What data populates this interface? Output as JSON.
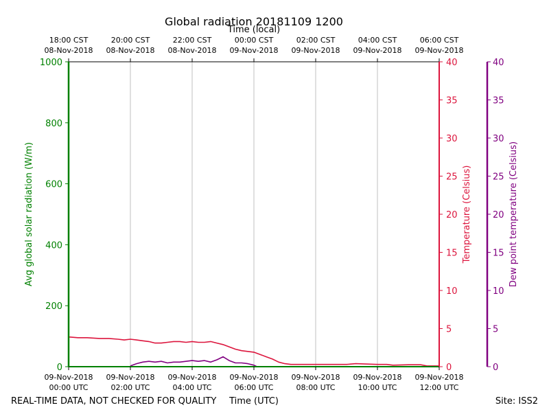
{
  "chart_data": {
    "type": "line",
    "title": "Global radiation 20181109 1200",
    "top_axis_label": "Time (local)",
    "xlabel": "Time (UTC)",
    "footer_left": "REAL-TIME DATA, NOT CHECKED FOR QUALITY",
    "footer_right": "Site: ISS2",
    "x_range_hours": [
      0,
      12
    ],
    "x_ticks": [
      {
        "hour": 0,
        "utc": [
          "09-Nov-2018",
          "00:00 UTC"
        ],
        "local": [
          "18:00 CST",
          "08-Nov-2018"
        ]
      },
      {
        "hour": 2,
        "utc": [
          "09-Nov-2018",
          "02:00 UTC"
        ],
        "local": [
          "20:00 CST",
          "08-Nov-2018"
        ]
      },
      {
        "hour": 4,
        "utc": [
          "09-Nov-2018",
          "04:00 UTC"
        ],
        "local": [
          "22:00 CST",
          "08-Nov-2018"
        ]
      },
      {
        "hour": 6,
        "utc": [
          "09-Nov-2018",
          "06:00 UTC"
        ],
        "local": [
          "00:00 CST",
          "09-Nov-2018"
        ]
      },
      {
        "hour": 8,
        "utc": [
          "09-Nov-2018",
          "08:00 UTC"
        ],
        "local": [
          "02:00 CST",
          "09-Nov-2018"
        ]
      },
      {
        "hour": 10,
        "utc": [
          "09-Nov-2018",
          "10:00 UTC"
        ],
        "local": [
          "04:00 CST",
          "09-Nov-2018"
        ]
      },
      {
        "hour": 12,
        "utc": [
          "09-Nov-2018",
          "12:00 UTC"
        ],
        "local": [
          "06:00 CST",
          "09-Nov-2018"
        ]
      }
    ],
    "axes": {
      "radiation": {
        "label": "Avg global solar radiation (W/m)",
        "range": [
          0,
          1000
        ],
        "ticks": [
          0,
          200,
          400,
          600,
          800,
          1000
        ],
        "color": "#008000"
      },
      "temperature": {
        "label": "Temperature (Celsius)",
        "range": [
          0,
          40
        ],
        "ticks": [
          0,
          5,
          10,
          15,
          20,
          25,
          30,
          35,
          40
        ],
        "color": "#dc143c"
      },
      "dewpoint": {
        "label": "Dew point temperature (Celsius)",
        "range": [
          0,
          40
        ],
        "ticks": [
          0,
          5,
          10,
          15,
          20,
          25,
          30,
          35,
          40
        ],
        "color": "#800080"
      }
    },
    "series": [
      {
        "name": "Temperature",
        "axis": "temperature",
        "color": "#dc143c",
        "x": [
          0,
          0.3,
          0.6,
          1.0,
          1.3,
          1.6,
          1.8,
          2.0,
          2.2,
          2.4,
          2.6,
          2.8,
          3.0,
          3.2,
          3.4,
          3.6,
          3.8,
          4.0,
          4.2,
          4.4,
          4.6,
          4.7,
          4.8,
          5.0,
          5.2,
          5.4,
          5.6,
          5.8,
          6.0,
          6.2,
          6.4,
          6.6,
          6.8,
          7.0,
          7.2,
          7.5,
          8.0,
          8.5,
          9.0,
          9.3,
          9.6,
          10.0,
          10.3,
          10.5,
          11.0,
          11.4,
          11.6,
          12.0
        ],
        "values": [
          3.9,
          3.8,
          3.8,
          3.7,
          3.7,
          3.6,
          3.5,
          3.6,
          3.5,
          3.4,
          3.3,
          3.1,
          3.1,
          3.2,
          3.3,
          3.3,
          3.2,
          3.3,
          3.2,
          3.2,
          3.3,
          3.2,
          3.1,
          2.9,
          2.6,
          2.3,
          2.1,
          2.0,
          1.9,
          1.6,
          1.3,
          1.0,
          0.6,
          0.4,
          0.3,
          0.3,
          0.3,
          0.3,
          0.3,
          0.4,
          0.35,
          0.3,
          0.3,
          0.2,
          0.25,
          0.25,
          0.1,
          0.1
        ]
      },
      {
        "name": "Dew point",
        "axis": "dewpoint",
        "color": "#800080",
        "x": [
          0,
          1.9,
          2.0,
          2.2,
          2.4,
          2.6,
          2.8,
          3.0,
          3.2,
          3.4,
          3.6,
          3.8,
          4.0,
          4.2,
          4.4,
          4.6,
          4.8,
          5.0,
          5.2,
          5.4,
          5.6,
          5.8,
          6.0,
          6.1
        ],
        "values": [
          null,
          null,
          0.1,
          0.4,
          0.6,
          0.7,
          0.6,
          0.7,
          0.5,
          0.6,
          0.6,
          0.7,
          0.8,
          0.7,
          0.8,
          0.6,
          0.9,
          1.3,
          0.8,
          0.5,
          0.5,
          0.4,
          0.2,
          0.0
        ]
      },
      {
        "name": "Avg global solar radiation",
        "axis": "radiation",
        "color": "#008000",
        "x": [
          0,
          12
        ],
        "values": [
          0,
          0
        ]
      }
    ]
  }
}
